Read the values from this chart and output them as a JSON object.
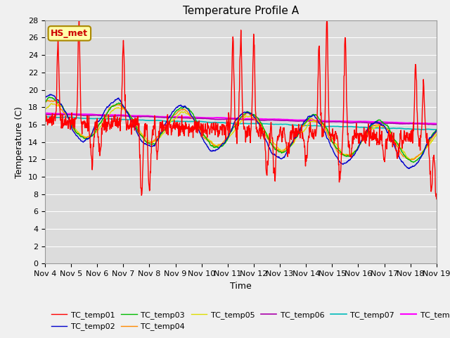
{
  "title": "Temperature Profile A",
  "xlabel": "Time",
  "ylabel": "Temperature (C)",
  "ylim": [
    0,
    28
  ],
  "x_tick_labels": [
    "Nov 4",
    "Nov 5",
    "Nov 6",
    "Nov 7",
    "Nov 8",
    "Nov 9",
    "Nov 10",
    "Nov 11",
    "Nov 12",
    "Nov 13",
    "Nov 14",
    "Nov 15",
    "Nov 16",
    "Nov 17",
    "Nov 18",
    "Nov 19"
  ],
  "series_colors": {
    "TC_temp01": "#ff0000",
    "TC_temp02": "#0000cc",
    "TC_temp03": "#00bb00",
    "TC_temp04": "#ff8800",
    "TC_temp05": "#dddd00",
    "TC_temp06": "#aa00aa",
    "TC_temp07": "#00bbbb",
    "TC_temp08": "#ff00ff"
  },
  "annotation_text": "HS_met",
  "annotation_color": "#cc0000",
  "annotation_bg": "#ffffaa",
  "annotation_border": "#aa8800",
  "plot_bg": "#dcdcdc",
  "fig_bg": "#f0f0f0",
  "grid_color": "#ffffff",
  "title_fontsize": 11,
  "axis_label_fontsize": 9,
  "tick_fontsize": 8,
  "legend_fontsize": 8
}
